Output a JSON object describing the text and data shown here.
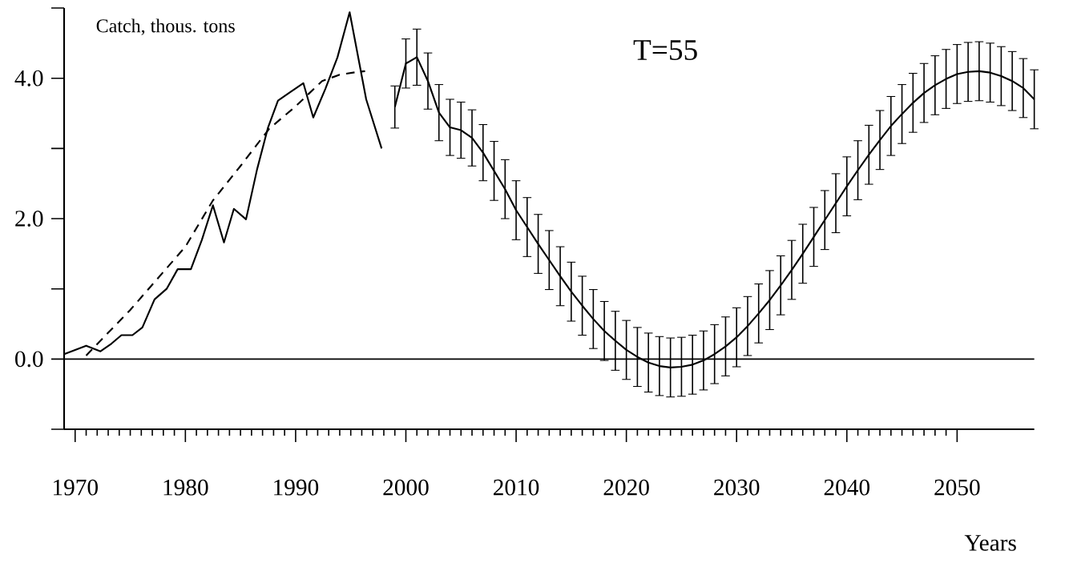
{
  "chart_data": {
    "type": "line",
    "ylabel": "Catch, thous. tons",
    "xlabel": "Years",
    "annotations": [
      "T=55"
    ],
    "xlim": [
      1969,
      2057
    ],
    "ylim": [
      -1,
      5
    ],
    "xticks": [
      {
        "value": 1970,
        "label": "1970"
      },
      {
        "value": 1980,
        "label": "1980"
      },
      {
        "value": 1990,
        "label": "1990"
      },
      {
        "value": 2000,
        "label": "2000"
      },
      {
        "value": 2010,
        "label": "2010"
      },
      {
        "value": 2020,
        "label": "2020"
      },
      {
        "value": 2030,
        "label": "2030"
      },
      {
        "value": 2040,
        "label": "2040"
      },
      {
        "value": 2050,
        "label": "2050"
      }
    ],
    "yticks": [
      {
        "value": -1,
        "label": null
      },
      {
        "value": 0,
        "label": "0.0"
      },
      {
        "value": 1,
        "label": null
      },
      {
        "value": 2,
        "label": "2.0"
      },
      {
        "value": 3,
        "label": null
      },
      {
        "value": 4,
        "label": "4.0"
      },
      {
        "value": 5,
        "label": null
      }
    ],
    "grid": false,
    "marker": "none",
    "ref_lines": [
      {
        "axis": "y",
        "value": 0,
        "color": "#000000",
        "line_style": "solid"
      }
    ],
    "series": [
      {
        "color": "#000000",
        "line_style": "solid",
        "x": [
          1969,
          1971,
          1972.3,
          1973.3,
          1974.2,
          1975.2,
          1976.1,
          1977.2,
          1978.3,
          1979.3,
          1980.5,
          1981.5,
          1982.5,
          1983.5,
          1984.4,
          1985.5,
          1986.5,
          1987.5,
          1988.4,
          1989.5,
          1990.7,
          1991.6,
          1992.7,
          1993.8,
          1994.9,
          1996.4,
          1997.8
        ],
        "values": [
          0.07,
          0.19,
          0.11,
          0.22,
          0.34,
          0.34,
          0.45,
          0.85,
          1.0,
          1.28,
          1.28,
          1.7,
          2.19,
          1.66,
          2.14,
          1.99,
          2.7,
          3.3,
          3.68,
          3.8,
          3.93,
          3.44,
          3.85,
          4.3,
          4.94,
          3.7,
          3.0
        ]
      },
      {
        "color": "#000000",
        "line_style": "dashed",
        "x": [
          1971,
          1975,
          1980,
          1982.5,
          1985,
          1987.6,
          1990,
          1992.4,
          1994,
          1995.6,
          1996.3
        ],
        "values": [
          0.05,
          0.7,
          1.6,
          2.26,
          2.75,
          3.28,
          3.6,
          3.96,
          4.05,
          4.09,
          4.1
        ]
      },
      {
        "color": "#000000",
        "line_style": "solid",
        "x": [
          1999,
          2000,
          2001,
          2002,
          2003,
          2004,
          2005,
          2006,
          2007,
          2008,
          2009,
          2010,
          2011,
          2012,
          2013,
          2014,
          2015,
          2016,
          2017,
          2018,
          2019,
          2020,
          2021,
          2022,
          2023,
          2024,
          2025,
          2026,
          2027,
          2028,
          2029,
          2030,
          2031,
          2032,
          2033,
          2034,
          2035,
          2036,
          2037,
          2038,
          2039,
          2040,
          2041,
          2042,
          2043,
          2044,
          2045,
          2046,
          2047,
          2048,
          2049,
          2050,
          2051,
          2052,
          2053,
          2054,
          2055,
          2056,
          2057
        ],
        "values": [
          3.59,
          4.21,
          4.3,
          3.96,
          3.51,
          3.3,
          3.26,
          3.15,
          2.94,
          2.68,
          2.42,
          2.12,
          1.88,
          1.64,
          1.41,
          1.18,
          0.96,
          0.76,
          0.57,
          0.4,
          0.26,
          0.13,
          0.03,
          -0.05,
          -0.1,
          -0.12,
          -0.11,
          -0.08,
          -0.02,
          0.07,
          0.18,
          0.31,
          0.47,
          0.65,
          0.84,
          1.05,
          1.27,
          1.5,
          1.74,
          1.98,
          2.22,
          2.46,
          2.69,
          2.91,
          3.12,
          3.32,
          3.49,
          3.65,
          3.79,
          3.9,
          3.99,
          4.06,
          4.09,
          4.1,
          4.08,
          4.03,
          3.96,
          3.86,
          3.7
        ],
        "errors": [
          0.3,
          0.35,
          0.4,
          0.4,
          0.4,
          0.4,
          0.4,
          0.4,
          0.4,
          0.42,
          0.42,
          0.42,
          0.42,
          0.42,
          0.42,
          0.42,
          0.42,
          0.42,
          0.42,
          0.42,
          0.42,
          0.42,
          0.42,
          0.42,
          0.42,
          0.42,
          0.42,
          0.42,
          0.42,
          0.42,
          0.42,
          0.42,
          0.42,
          0.42,
          0.42,
          0.42,
          0.42,
          0.42,
          0.42,
          0.42,
          0.42,
          0.42,
          0.42,
          0.42,
          0.42,
          0.42,
          0.42,
          0.42,
          0.42,
          0.42,
          0.42,
          0.42,
          0.42,
          0.42,
          0.42,
          0.42,
          0.42,
          0.42,
          0.42
        ]
      }
    ]
  }
}
